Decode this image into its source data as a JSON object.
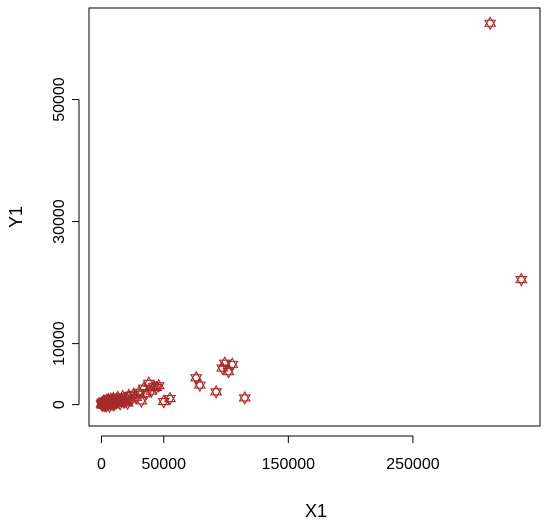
{
  "chart_data": {
    "type": "scatter",
    "xlabel": "X1",
    "ylabel": "Y1",
    "xlim": [
      -10000,
      352000
    ],
    "ylim": [
      -3500,
      65000
    ],
    "x_ticks": [
      0,
      50000,
      150000,
      250000
    ],
    "x_tick_labels": [
      "0",
      "50000",
      "150000",
      "250000"
    ],
    "y_ticks": [
      0,
      10000,
      30000,
      50000
    ],
    "y_tick_labels": [
      "0",
      "10000",
      "30000",
      "50000"
    ],
    "marker": "hexagram",
    "marker_color": "#A52A2A",
    "grid": false,
    "legend": "none",
    "x": [
      150,
      400,
      700,
      900,
      1100,
      1400,
      1700,
      2000,
      2300,
      2700,
      3000,
      3400,
      3800,
      4200,
      4600,
      5000,
      5500,
      6000,
      6500,
      7000,
      7500,
      8000,
      8500,
      9000,
      9500,
      10000,
      11000,
      12000,
      13000,
      14000,
      15000,
      16000,
      17000,
      18000,
      19000,
      20000,
      21000,
      22000,
      24000,
      26000,
      28000,
      30000,
      32000,
      34000,
      36000,
      38000,
      40000,
      42000,
      44000,
      46000,
      50000,
      55000,
      76000,
      79000,
      92000,
      97000,
      99000,
      102000,
      105000,
      115000,
      312000,
      337000
    ],
    "y": [
      50,
      250,
      -100,
      400,
      150,
      -50,
      300,
      600,
      100,
      -150,
      500,
      200,
      -200,
      700,
      350,
      50,
      800,
      450,
      -250,
      250,
      900,
      600,
      100,
      400,
      1000,
      -50,
      700,
      300,
      1200,
      500,
      150,
      900,
      1300,
      400,
      600,
      1100,
      250,
      1500,
      800,
      1700,
      1200,
      2000,
      600,
      2700,
      1800,
      3500,
      2200,
      3000,
      2800,
      3100,
      500,
      1000,
      4400,
      3200,
      2100,
      6000,
      6800,
      5400,
      6600,
      1100,
      62500,
      20500
    ]
  }
}
